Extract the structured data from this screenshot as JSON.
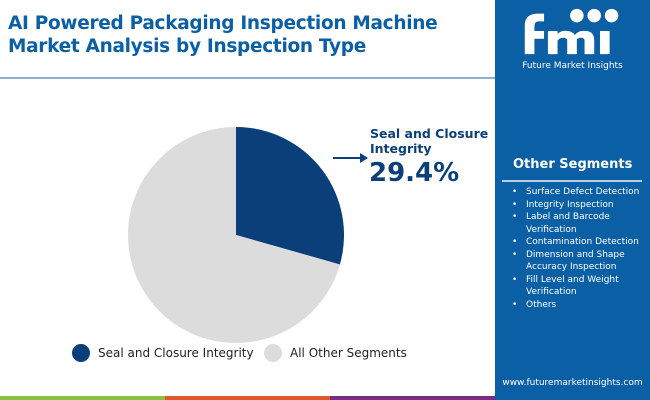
{
  "title": "AI Powered Packaging Inspection Machine Market Analysis by Inspection Type",
  "brand": {
    "logo_text": "fmi",
    "name": "Future Market Insights",
    "url": "www.futuremarketinsights.com"
  },
  "sidebar": {
    "heading": "Other Segments",
    "items": [
      "Surface Defect Detection",
      "Integrity Inspection",
      "Label and Barcode Verification",
      "Contamination Detection",
      "Dimension and Shape Accuracy Inspection",
      "Fill Level and Weight Verification",
      "Others"
    ]
  },
  "colors": {
    "accent": "#0b5fa5",
    "highlight": "#0b3f7a",
    "other": "#dcdcdc",
    "stripe": [
      "#8cbf3f",
      "#e0592a",
      "#7b2a86"
    ]
  },
  "chart_data": {
    "type": "pie",
    "slices": [
      {
        "label": "Seal and Closure Integrity",
        "value": 29.4,
        "color": "#0b3f7a"
      },
      {
        "label": "All Other Segments",
        "value": 70.6,
        "color": "#dcdcdc"
      }
    ],
    "annotation": {
      "label": "Seal and Closure Integrity",
      "value": "29.4%"
    },
    "legend": "bottom"
  }
}
